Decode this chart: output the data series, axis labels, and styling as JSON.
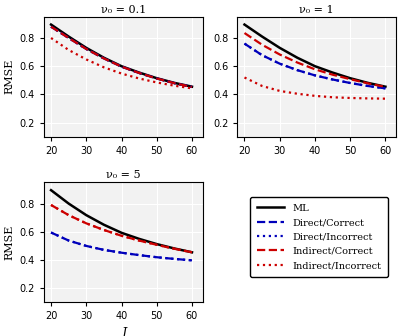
{
  "x": [
    20,
    25,
    30,
    35,
    40,
    45,
    50,
    55,
    60
  ],
  "panels": [
    {
      "title": "ν₀ = 0.1",
      "ML": [
        0.895,
        0.81,
        0.73,
        0.66,
        0.6,
        0.555,
        0.515,
        0.482,
        0.455
      ],
      "Direct_Correct": [
        0.88,
        0.8,
        0.722,
        0.655,
        0.597,
        0.552,
        0.513,
        0.48,
        0.453
      ],
      "Direct_Incorrect": [
        0.88,
        0.8,
        0.722,
        0.655,
        0.597,
        0.552,
        0.513,
        0.48,
        0.453
      ],
      "Indirect_Correct": [
        0.88,
        0.8,
        0.722,
        0.655,
        0.597,
        0.552,
        0.513,
        0.48,
        0.453
      ],
      "Indirect_Incorrect": [
        0.8,
        0.715,
        0.648,
        0.592,
        0.548,
        0.513,
        0.485,
        0.462,
        0.443
      ]
    },
    {
      "title": "ν₀ = 1",
      "ML": [
        0.895,
        0.81,
        0.73,
        0.66,
        0.6,
        0.555,
        0.515,
        0.482,
        0.455
      ],
      "Direct_Correct": [
        0.76,
        0.678,
        0.618,
        0.572,
        0.535,
        0.506,
        0.481,
        0.46,
        0.443
      ],
      "Direct_Incorrect": [
        0.76,
        0.678,
        0.618,
        0.572,
        0.535,
        0.506,
        0.481,
        0.46,
        0.443
      ],
      "Indirect_Correct": [
        0.835,
        0.752,
        0.683,
        0.626,
        0.578,
        0.54,
        0.508,
        0.479,
        0.453
      ],
      "Indirect_Incorrect": [
        0.52,
        0.46,
        0.425,
        0.405,
        0.39,
        0.38,
        0.375,
        0.372,
        0.37
      ]
    },
    {
      "title": "ν₀ = 5",
      "ML": [
        0.895,
        0.8,
        0.718,
        0.65,
        0.593,
        0.55,
        0.513,
        0.482,
        0.455
      ],
      "Direct_Correct": [
        0.595,
        0.538,
        0.5,
        0.472,
        0.452,
        0.435,
        0.42,
        0.408,
        0.398
      ],
      "Direct_Incorrect": [
        0.595,
        0.538,
        0.5,
        0.472,
        0.452,
        0.435,
        0.42,
        0.408,
        0.398
      ],
      "Indirect_Correct": [
        0.79,
        0.718,
        0.66,
        0.613,
        0.572,
        0.538,
        0.508,
        0.48,
        0.455
      ],
      "Indirect_Incorrect": [
        0.79,
        0.718,
        0.66,
        0.613,
        0.572,
        0.538,
        0.508,
        0.48,
        0.455
      ]
    }
  ],
  "legend": {
    "ML": {
      "color": "#000000",
      "linestyle": "-",
      "linewidth": 1.8,
      "label": "ML"
    },
    "Direct_Correct": {
      "color": "#0000BB",
      "linestyle": "--",
      "linewidth": 1.6,
      "label": "Direct/Correct"
    },
    "Direct_Incorrect": {
      "color": "#0000BB",
      "linestyle": ":",
      "linewidth": 1.6,
      "label": "Direct/Incorrect"
    },
    "Indirect_Correct": {
      "color": "#CC0000",
      "linestyle": "--",
      "linewidth": 1.6,
      "label": "Indirect/Correct"
    },
    "Indirect_Incorrect": {
      "color": "#CC0000",
      "linestyle": ":",
      "linewidth": 1.6,
      "label": "Indirect/Incorrect"
    }
  },
  "ylim": [
    0.1,
    0.95
  ],
  "yticks": [
    0.2,
    0.4,
    0.6,
    0.8
  ],
  "xticks": [
    20,
    30,
    40,
    50,
    60
  ],
  "ylabel": "RMSE",
  "xlabel": "J",
  "bg_color": "#f2f2f2",
  "grid_color": "#ffffff"
}
